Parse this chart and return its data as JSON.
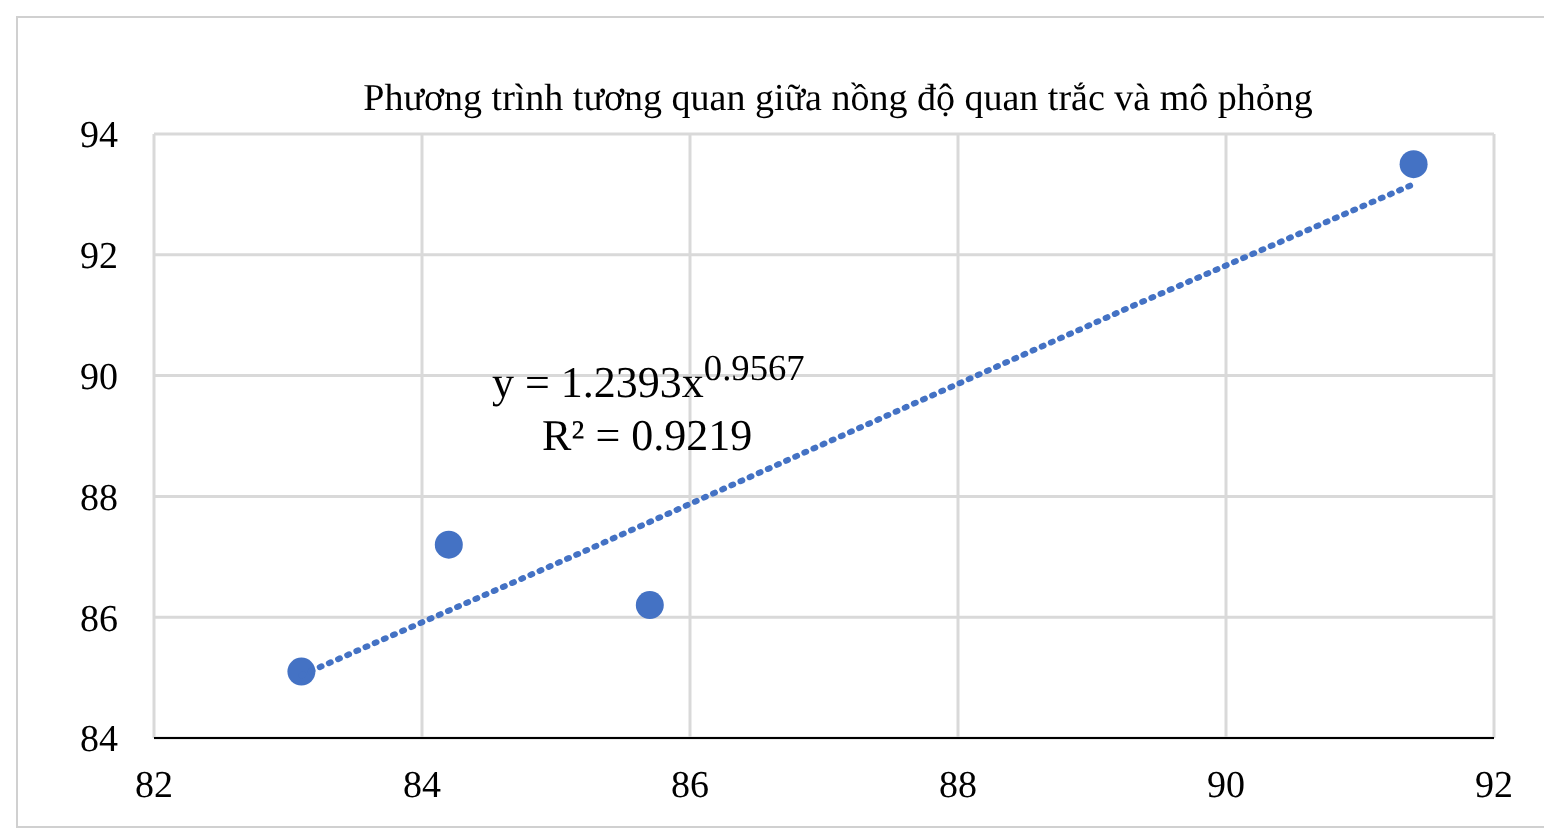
{
  "chart_data": {
    "type": "scatter",
    "title": "Phương trình tương quan giữa nồng độ quan trắc và mô phỏng",
    "series": [
      {
        "color": "#4472c4",
        "marker": "circle",
        "x": [
          83.1,
          84.2,
          85.7,
          91.4
        ],
        "values": [
          85.1,
          87.2,
          86.2,
          93.5
        ]
      },
      {
        "type": "line",
        "color": "#4472c4",
        "marker": "none",
        "line_style": "dotted",
        "x": [
          83.1,
          85.2,
          87.25,
          89.3,
          91.4
        ],
        "values": [
          85.04,
          87.08,
          89.12,
          91.15,
          93.17
        ]
      }
    ],
    "xlim": [
      82,
      92
    ],
    "xticks": [
      82,
      84,
      86,
      88,
      90,
      92
    ],
    "ylim": [
      84,
      94
    ],
    "yticks": [
      84,
      86,
      88,
      90,
      92,
      94
    ],
    "grid": true,
    "annotations": [
      "y = 1.2393x$^{0.9567}$",
      "R² = 0.9219"
    ]
  }
}
